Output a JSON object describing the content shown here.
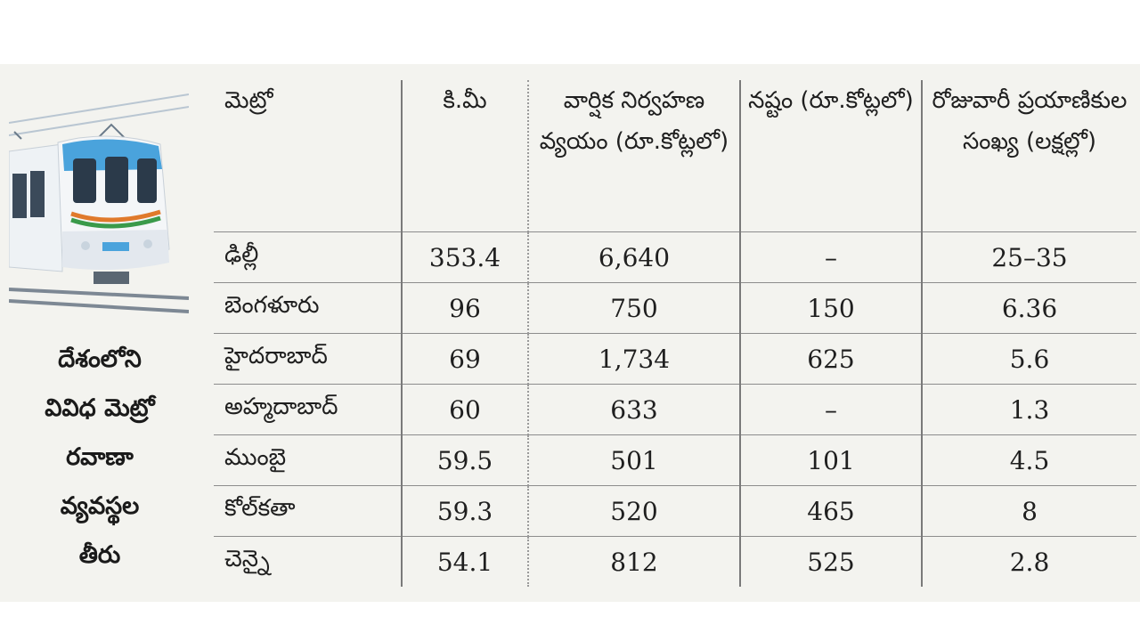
{
  "caption": [
    "దేశంలోని",
    "వివిధ మెట్రో",
    "రవాణా",
    "వ్యవస్థల",
    "తీరు"
  ],
  "headers": [
    "మెట్రో",
    "కి.మీ",
    "వార్షిక నిర్వహణ వ్యయం (రూ.కోట్లలో)",
    "నష్టం (రూ.కోట్లలో)",
    "రోజువారీ ప్రయాణికుల సంఖ్య (లక్షల్లో)"
  ],
  "rows": [
    {
      "city": "ఢిల్లీ",
      "km": "353.4",
      "cost": "6,640",
      "loss": "–",
      "riders": "25–35"
    },
    {
      "city": "బెంగళూరు",
      "km": "96",
      "cost": "750",
      "loss": "150",
      "riders": "6.36"
    },
    {
      "city": "హైదరాబాద్",
      "km": "69",
      "cost": "1,734",
      "loss": "625",
      "riders": "5.6"
    },
    {
      "city": "అహ్మదాబాద్",
      "km": "60",
      "cost": "633",
      "loss": "–",
      "riders": "1.3"
    },
    {
      "city": "ముంబై",
      "km": "59.5",
      "cost": "501",
      "loss": "101",
      "riders": "4.5"
    },
    {
      "city": "కోల్‌కతా",
      "km": "59.3",
      "cost": "520",
      "loss": "465",
      "riders": "8"
    },
    {
      "city": "చెన్నై",
      "km": "54.1",
      "cost": "812",
      "loss": "525",
      "riders": "2.8"
    }
  ],
  "colors": {
    "train_body": "#f4f6f8",
    "train_front": "#4aa3dc",
    "train_window": "#2b3a4a",
    "stripe_orange": "#e07a2c",
    "stripe_green": "#3a9a4a",
    "panel": "#f3f3ef"
  },
  "icons": {
    "illustration": "metro-train-icon"
  }
}
